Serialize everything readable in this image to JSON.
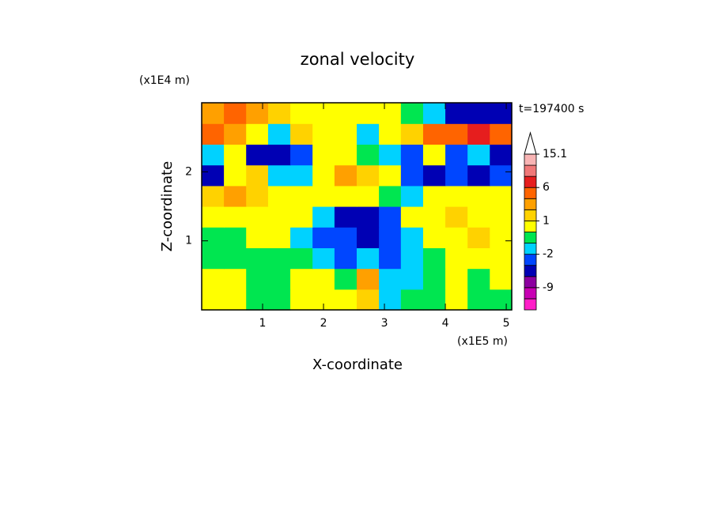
{
  "chart_data": {
    "type": "contour",
    "title": "zonal velocity",
    "x_label": "X-coordinate",
    "y_label": "Z-coordinate",
    "x_multiplier": "(x1E5 m)",
    "y_multiplier": "(x1E4 m)",
    "annotation": "t=197400 s",
    "xlim": [
      0,
      5.09
    ],
    "ylim": [
      0,
      3
    ],
    "xticks": [
      1,
      2,
      3,
      4,
      5
    ],
    "yticks": [
      1,
      2
    ],
    "x": [
      0.18,
      0.55,
      0.91,
      1.27,
      1.64,
      2.0,
      2.36,
      2.73,
      3.09,
      3.45,
      3.82,
      4.18,
      4.55,
      4.91
    ],
    "y": [
      0.15,
      0.45,
      0.75,
      1.05,
      1.35,
      1.65,
      1.95,
      2.25,
      2.55,
      2.85
    ],
    "z": [
      [
        0.5,
        0.5,
        -0.5,
        -0.5,
        0.5,
        1,
        0.5,
        2,
        -1,
        -0.5,
        -0.5,
        0.5,
        -0.5,
        -0.5
      ],
      [
        0.5,
        1,
        -0.5,
        -0.5,
        0.5,
        0.5,
        -0.5,
        3,
        -1,
        -1.5,
        -0.5,
        0.5,
        -0.5,
        0.5
      ],
      [
        -0.5,
        -0.5,
        -0.5,
        -0.5,
        -0.5,
        -1,
        -2,
        -1,
        -2,
        -1,
        -0.5,
        0.5,
        1,
        1
      ],
      [
        -0.5,
        -0.5,
        0.5,
        0.5,
        -1,
        -2,
        -3,
        -4,
        -2,
        -1,
        0.5,
        1,
        2,
        1
      ],
      [
        0.5,
        1,
        0.5,
        0.5,
        0.5,
        -1,
        -4,
        -5,
        -3,
        0.5,
        1,
        2,
        1,
        0.5
      ],
      [
        2,
        3,
        2,
        1,
        0.5,
        0.5,
        1,
        0.5,
        0,
        -1,
        0.5,
        1,
        0.5,
        1
      ],
      [
        -4,
        0.5,
        2,
        -1,
        -1,
        1,
        3,
        2,
        0.5,
        -3,
        -5,
        -3,
        -5,
        -2
      ],
      [
        -1,
        0.5,
        -5,
        -5,
        -3,
        1,
        0.5,
        0,
        -1,
        -2,
        0.5,
        -3,
        -1,
        -4
      ],
      [
        4,
        3,
        1,
        -1,
        2,
        1,
        0.5,
        -1,
        0.5,
        2,
        4,
        5,
        7,
        4
      ],
      [
        3,
        4,
        3,
        2,
        1,
        1,
        0.5,
        0.5,
        1,
        0,
        -1,
        -5,
        -5,
        -4
      ]
    ],
    "colorbar": {
      "levels": [
        -15,
        -12,
        -9,
        -6,
        -4,
        -2,
        -1,
        0,
        1,
        2,
        3,
        6,
        9,
        12,
        15.1
      ],
      "colors": [
        "#ff1ec8",
        "#c800b4",
        "#8c00a0",
        "#0000b4",
        "#0046ff",
        "#00d2ff",
        "#00e650",
        "#ffff00",
        "#ffd200",
        "#ffa000",
        "#ff6400",
        "#e61e1e",
        "#f07878",
        "#f8b4b4"
      ],
      "extend_color": "#ffffff",
      "ticks": [
        -9,
        -2,
        1,
        6,
        15.1
      ]
    }
  }
}
